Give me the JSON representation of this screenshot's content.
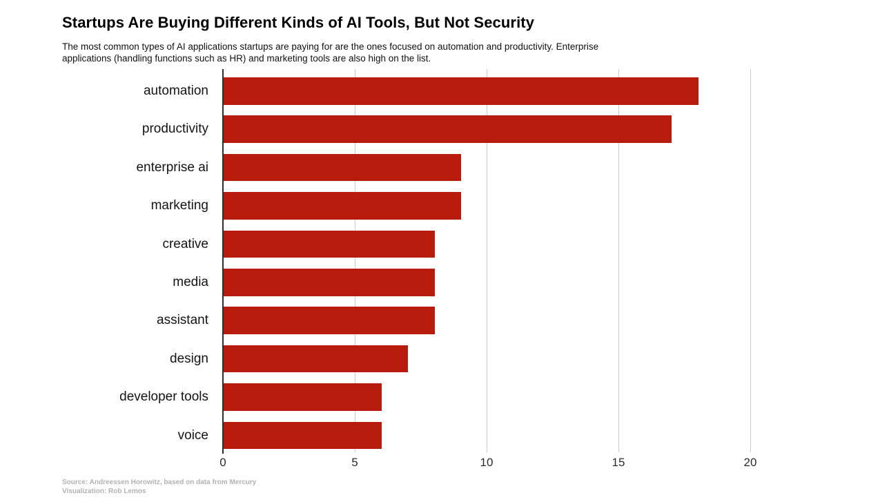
{
  "header": {
    "title": "Startups Are Buying Different Kinds of AI Tools, But Not Security",
    "subtitle": "The most common types of AI applications startups are paying for are the ones focused on automation and productivity. Enterprise\napplications (handling functions such as HR) and marketing tools are also high on the list."
  },
  "footer": {
    "source": "Source: Andreessen Horowitz, based on data from Mercury",
    "visualization": "Visualization: Rob Lemos"
  },
  "colors": {
    "bar": "#b71b0b",
    "axis_zero_line": "#2e2e2e",
    "gridline": "#cccccc",
    "tick_text": "#2b2b2b",
    "label_text": "#141414",
    "source_text": "#b2b2b2"
  },
  "chart_data": {
    "type": "bar",
    "orientation": "horizontal",
    "title": "Startups Are Buying Different Kinds of AI Tools, But Not Security",
    "categories": [
      "automation",
      "productivity",
      "enterprise ai",
      "marketing",
      "creative",
      "media",
      "assistant",
      "design",
      "developer tools",
      "voice"
    ],
    "values": [
      18,
      17,
      9,
      9,
      8,
      8,
      8,
      7,
      6,
      6
    ],
    "xlabel": "",
    "ylabel": "",
    "xlim": [
      0,
      20
    ],
    "xticks": [
      0,
      5,
      10,
      15,
      20
    ],
    "grid": true,
    "legend": false,
    "data_labels": false
  }
}
